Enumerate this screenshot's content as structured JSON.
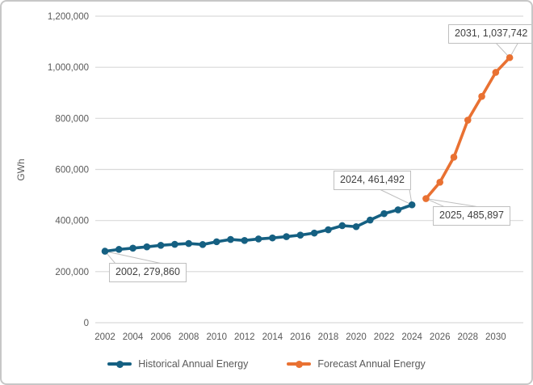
{
  "chart_data": {
    "type": "line",
    "title": "",
    "xlabel": "",
    "ylabel": "GWh",
    "ylim": [
      0,
      1200000
    ],
    "grid": true,
    "legend_position": "bottom",
    "y_ticks": [
      {
        "value": 0,
        "label": "0"
      },
      {
        "value": 200000,
        "label": "200,000"
      },
      {
        "value": 400000,
        "label": "400,000"
      },
      {
        "value": 600000,
        "label": "600,000"
      },
      {
        "value": 800000,
        "label": "800,000"
      },
      {
        "value": 1000000,
        "label": "1,000,000"
      },
      {
        "value": 1200000,
        "label": "1,200,000"
      }
    ],
    "x_ticks": [
      {
        "value": 2002,
        "label": "2002"
      },
      {
        "value": 2004,
        "label": "2004"
      },
      {
        "value": 2006,
        "label": "2006"
      },
      {
        "value": 2008,
        "label": "2008"
      },
      {
        "value": 2010,
        "label": "2010"
      },
      {
        "value": 2012,
        "label": "2012"
      },
      {
        "value": 2014,
        "label": "2014"
      },
      {
        "value": 2016,
        "label": "2016"
      },
      {
        "value": 2018,
        "label": "2018"
      },
      {
        "value": 2020,
        "label": "2020"
      },
      {
        "value": 2022,
        "label": "2022"
      },
      {
        "value": 2024,
        "label": "2024"
      },
      {
        "value": 2026,
        "label": "2026"
      },
      {
        "value": 2028,
        "label": "2028"
      },
      {
        "value": 2030,
        "label": "2030"
      }
    ],
    "series": [
      {
        "name": "Historical Annual Energy",
        "color": "#156082",
        "x": [
          2002,
          2003,
          2004,
          2005,
          2006,
          2007,
          2008,
          2009,
          2010,
          2011,
          2012,
          2013,
          2014,
          2015,
          2016,
          2017,
          2018,
          2019,
          2020,
          2021,
          2022,
          2023,
          2024
        ],
        "values": [
          279860,
          287000,
          292000,
          297000,
          303000,
          307000,
          310000,
          306000,
          317000,
          326000,
          322000,
          328000,
          332000,
          337000,
          343000,
          351000,
          364000,
          380000,
          376000,
          402000,
          427000,
          442000,
          461492
        ]
      },
      {
        "name": "Forecast Annual Energy",
        "color": "#E97132",
        "x": [
          2025,
          2026,
          2027,
          2028,
          2029,
          2030,
          2031
        ],
        "values": [
          485897,
          550000,
          648000,
          793000,
          886000,
          980000,
          1037742
        ]
      }
    ],
    "annotations": [
      {
        "label": "2002, 279,860",
        "year": 2002,
        "value": 279860,
        "series": "Historical Annual Energy"
      },
      {
        "label": "2024, 461,492",
        "year": 2024,
        "value": 461492,
        "series": "Historical Annual Energy"
      },
      {
        "label": "2025, 485,897",
        "year": 2025,
        "value": 485897,
        "series": "Forecast Annual Energy"
      },
      {
        "label": "2031, 1,037,742",
        "year": 2031,
        "value": 1037742,
        "series": "Forecast Annual Energy"
      }
    ]
  },
  "colors": {
    "historical": "#156082",
    "forecast": "#E97132",
    "gridline": "#D9D9D9",
    "tick_text": "#595959",
    "annotation_border": "#BFBFBF",
    "annotation_text": "#3F3F3F"
  },
  "legend": {
    "items": [
      {
        "label": "Historical Annual Energy",
        "color": "#156082"
      },
      {
        "label": "Forecast Annual Energy",
        "color": "#E97132"
      }
    ]
  }
}
